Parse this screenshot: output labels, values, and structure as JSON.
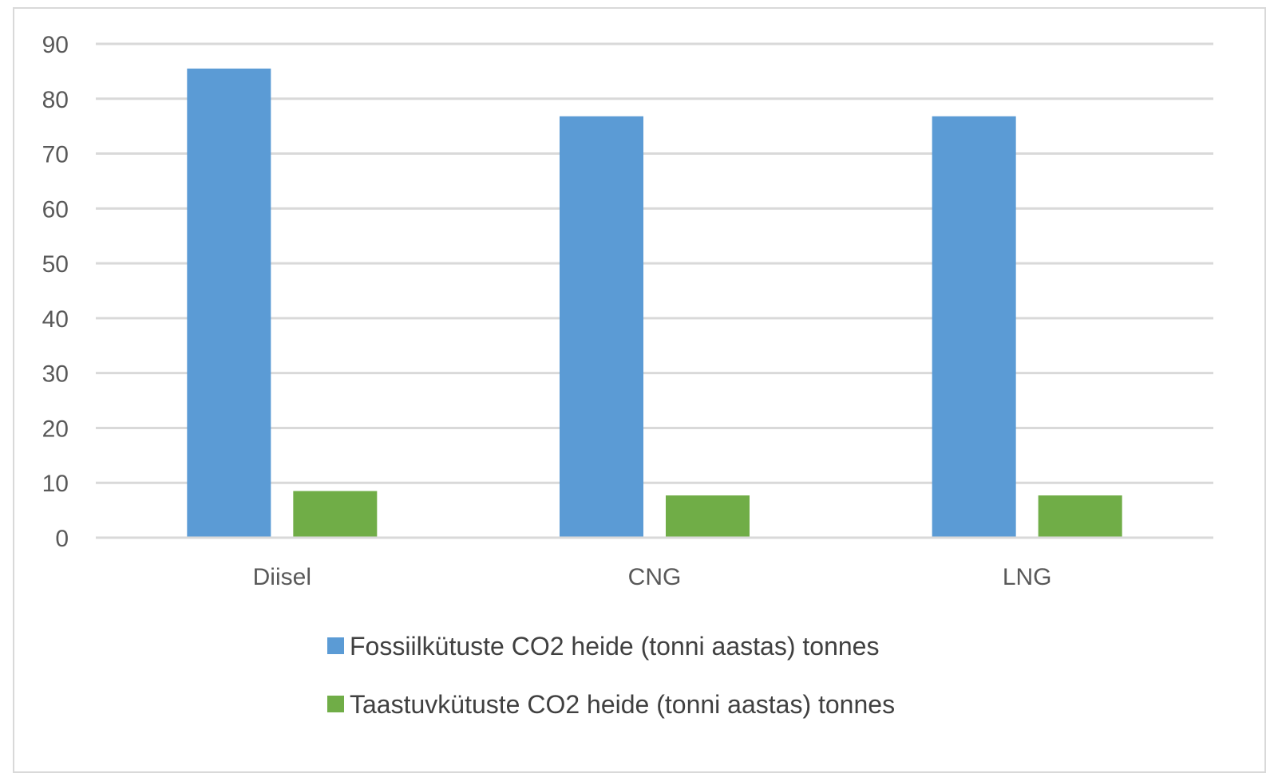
{
  "chart_data": {
    "type": "bar",
    "categories": [
      "Diisel",
      "CNG",
      "LNG"
    ],
    "series": [
      {
        "name": "Fossiilkütuste CO2 heide (tonni aastas) tonnes",
        "values": [
          85.5,
          76.8,
          76.8
        ],
        "color": "#5b9bd5"
      },
      {
        "name": "Taastuvkütuste CO2 heide (tonni aastas) tonnes",
        "values": [
          8.5,
          7.7,
          7.7
        ],
        "color": "#70ad47"
      }
    ],
    "yticks": [
      0,
      10,
      20,
      30,
      40,
      50,
      60,
      70,
      80,
      90
    ],
    "ylim": [
      0,
      90
    ],
    "grid": true,
    "legend_position": "bottom",
    "title": "",
    "xlabel": "",
    "ylabel": ""
  }
}
